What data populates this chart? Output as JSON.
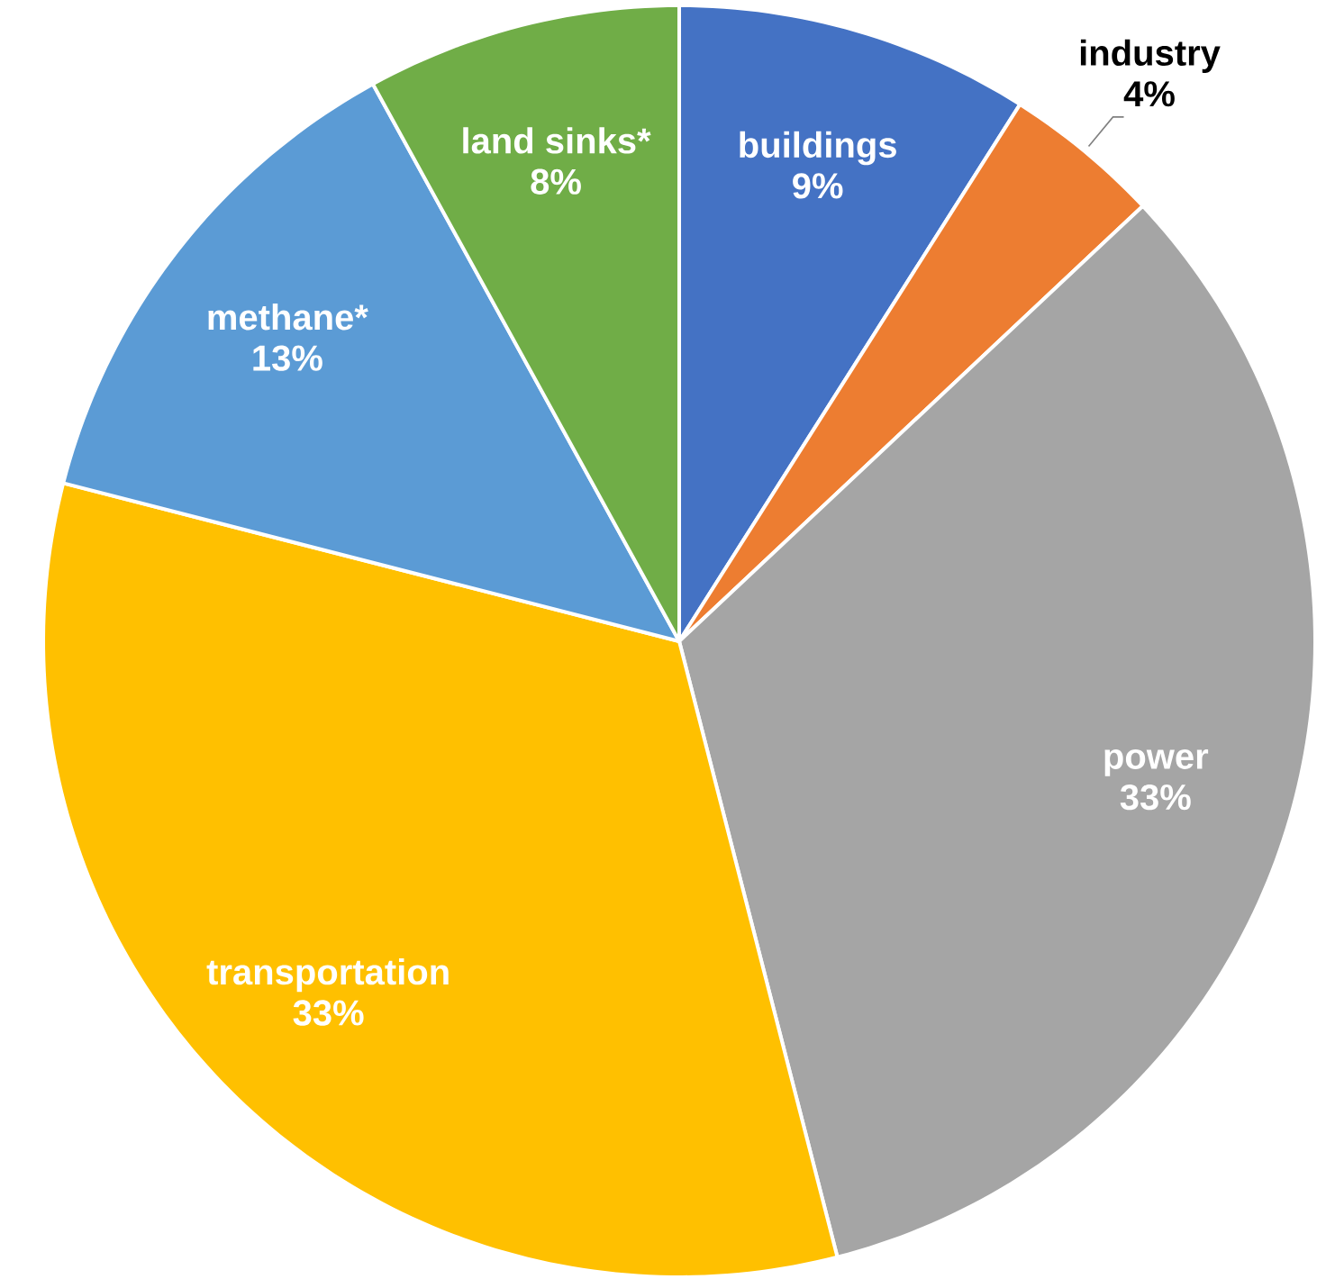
{
  "chart_data": {
    "type": "pie",
    "categories": [
      "buildings",
      "industry",
      "power",
      "transportation",
      "methane*",
      "land sinks*"
    ],
    "values": [
      9,
      4,
      33,
      33,
      13,
      8
    ],
    "value_labels": [
      "9%",
      "4%",
      "33%",
      "33%",
      "13%",
      "8%"
    ],
    "colors": [
      "#4472c4",
      "#ed7d31",
      "#a5a5a5",
      "#ffc000",
      "#5b9bd5",
      "#70ad47"
    ]
  }
}
